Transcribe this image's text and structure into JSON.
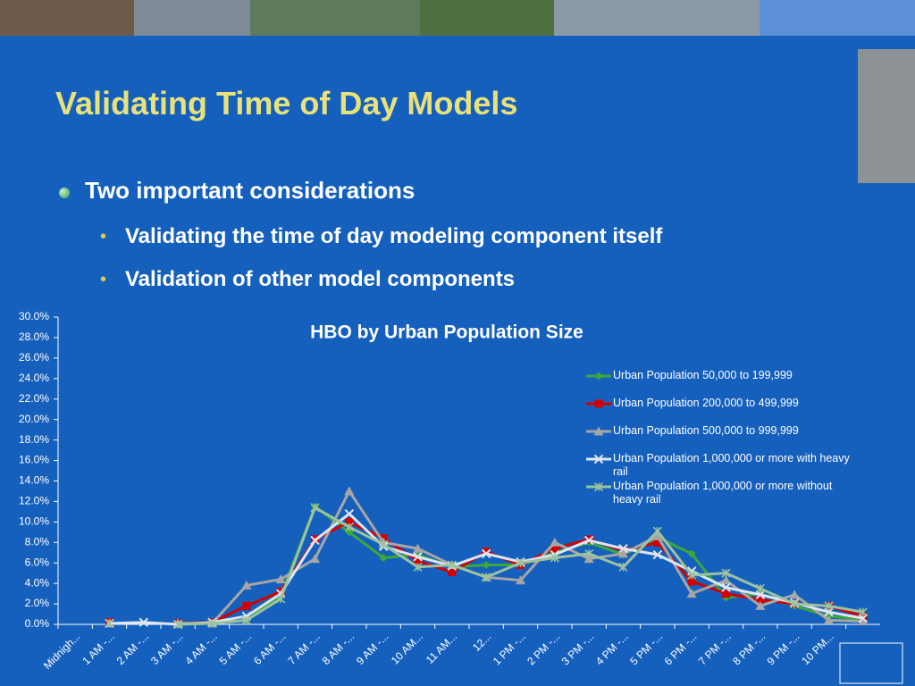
{
  "slide": {
    "title": "Validating Time of Day Models",
    "bullet": "Two important considerations",
    "subbullets": [
      "Validating the time of day modeling component itself",
      "Validation of other model components"
    ]
  },
  "chart_data": {
    "type": "line",
    "title": "HBO by Urban Population Size",
    "categories": [
      "Midnigh...",
      "1 AM -...",
      "2 AM -...",
      "3 AM -...",
      "4 AM -...",
      "5 AM -...",
      "6 AM -...",
      "7 AM -...",
      "8 AM -...",
      "9 AM -...",
      "10 AM...",
      "11 AM...",
      "12...",
      "1 PM -...",
      "2 PM -...",
      "3 PM -...",
      "4 PM -...",
      "5 PM -...",
      "6 PM -...",
      "7 PM -...",
      "8 PM -...",
      "9 PM -...",
      "10 PM...",
      null
    ],
    "series": [
      {
        "name": "Urban Population 50,000 to 199,999",
        "color": "#3aa83a",
        "marker": "diamond",
        "values": [
          null,
          0.1,
          null,
          0,
          0.1,
          0.4,
          2.8,
          11.5,
          9.0,
          6.5,
          6.8,
          5.6,
          5.8,
          5.8,
          7.0,
          8.0,
          6.8,
          8.5,
          6.9,
          2.6,
          3.0,
          1.8,
          0.8,
          0.5
        ]
      },
      {
        "name": "Urban Population 200,000 to 499,999",
        "color": "#d40000",
        "marker": "square",
        "values": [
          null,
          0.2,
          null,
          0.1,
          0.2,
          1.8,
          3.2,
          8.3,
          10.0,
          8.4,
          6.2,
          5.1,
          7.1,
          5.8,
          7.4,
          8.3,
          7.2,
          8.0,
          4.2,
          3.0,
          2.4,
          2.0,
          1.8,
          0.8
        ]
      },
      {
        "name": "Urban Population 500,000 to 999,999",
        "color": "#a6a6a6",
        "marker": "triangle",
        "values": [
          null,
          0.1,
          null,
          0.1,
          0.1,
          3.8,
          4.4,
          6.4,
          13.0,
          8.0,
          7.4,
          5.8,
          4.6,
          4.3,
          8.0,
          6.4,
          6.9,
          8.6,
          3.0,
          4.3,
          1.8,
          2.9,
          0.4,
          0.3
        ]
      },
      {
        "name": "Urban Population 1,000,000 or more with heavy rail",
        "color": "#dce6f2",
        "marker": "x",
        "values": [
          null,
          0.1,
          0.2,
          0,
          0.2,
          0.8,
          3.0,
          8.2,
          10.8,
          7.6,
          6.6,
          5.7,
          6.9,
          6.1,
          6.8,
          8.2,
          7.4,
          6.8,
          5.2,
          3.6,
          2.9,
          2.1,
          1.2,
          0.6
        ]
      },
      {
        "name": "Urban Population 1,000,000 or more without heavy rail",
        "color": "#9cc2a0",
        "marker": "star",
        "values": [
          null,
          0.1,
          null,
          0,
          0.1,
          0.4,
          2.5,
          11.4,
          9.5,
          7.8,
          5.6,
          5.8,
          4.6,
          6.0,
          6.5,
          6.9,
          5.6,
          9.1,
          4.8,
          5.0,
          3.5,
          2.0,
          1.8,
          1.2
        ]
      }
    ],
    "ylim": [
      0,
      30
    ],
    "yticks": [
      {
        "value": 0,
        "label": "0.0%"
      },
      {
        "value": 2,
        "label": "2.0%"
      },
      {
        "value": 4,
        "label": "4.0%"
      },
      {
        "value": 6,
        "label": "6.0%"
      },
      {
        "value": 8,
        "label": "8.0%"
      },
      {
        "value": 10,
        "label": "10.0%"
      },
      {
        "value": 12,
        "label": "12.0%"
      },
      {
        "value": 14,
        "label": "14.0%"
      },
      {
        "value": 16,
        "label": "16.0%"
      },
      {
        "value": 18,
        "label": "18.0%"
      },
      {
        "value": 20,
        "label": "20.0%"
      },
      {
        "value": 22,
        "label": "22.0%"
      },
      {
        "value": 24,
        "label": "24.0%"
      },
      {
        "value": 26,
        "label": "26.0%"
      },
      {
        "value": 28,
        "label": "28.0%"
      },
      {
        "value": 30,
        "label": "30.0%"
      }
    ],
    "legend": "right"
  }
}
